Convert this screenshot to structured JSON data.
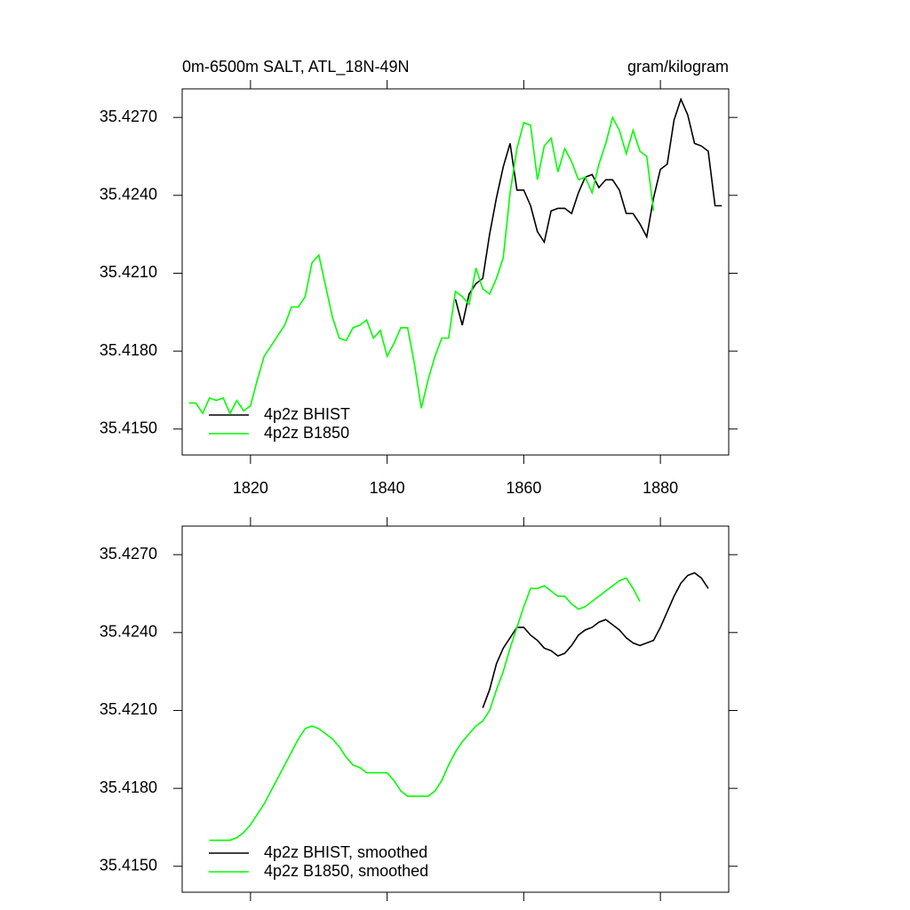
{
  "chart_data": [
    {
      "type": "line",
      "title": "0m-6500m SALT, ATL_18N-49N",
      "units_label": "gram/kilogram",
      "xlim": [
        1810,
        1890
      ],
      "xticks": [
        1820,
        1840,
        1860,
        1880
      ],
      "ylim": [
        35.414,
        35.4281
      ],
      "yticks": [
        {
          "value": 35.415,
          "label": "35.4150"
        },
        {
          "value": 35.418,
          "label": "35.4180"
        },
        {
          "value": 35.421,
          "label": "35.4210"
        },
        {
          "value": 35.424,
          "label": "35.4240"
        },
        {
          "value": 35.427,
          "label": "35.4270"
        }
      ],
      "series": [
        {
          "name": "4p2z BHIST",
          "color": "#000000",
          "x": [
            1850,
            1851,
            1852,
            1853,
            1854,
            1855,
            1856,
            1857,
            1858,
            1859,
            1860,
            1861,
            1862,
            1863,
            1864,
            1865,
            1866,
            1867,
            1868,
            1869,
            1870,
            1871,
            1872,
            1873,
            1874,
            1875,
            1876,
            1877,
            1878,
            1879,
            1880,
            1881,
            1882,
            1883,
            1884,
            1885,
            1886,
            1887,
            1888,
            1889
          ],
          "values": [
            35.42,
            35.419,
            35.4202,
            35.4206,
            35.4208,
            35.4225,
            35.4239,
            35.4251,
            35.426,
            35.4242,
            35.4242,
            35.4236,
            35.4226,
            35.4222,
            35.4234,
            35.4235,
            35.4235,
            35.4233,
            35.4241,
            35.4247,
            35.4248,
            35.4243,
            35.4246,
            35.4246,
            35.4242,
            35.4233,
            35.4233,
            35.4229,
            35.4224,
            35.4239,
            35.425,
            35.4252,
            35.4269,
            35.4277,
            35.4271,
            35.426,
            35.4259,
            35.4257,
            35.4236,
            35.4236
          ]
        },
        {
          "name": "4p2z B1850",
          "color": "#00ff00",
          "x": [
            1811,
            1812,
            1813,
            1814,
            1815,
            1816,
            1817,
            1818,
            1819,
            1820,
            1821,
            1822,
            1823,
            1824,
            1825,
            1826,
            1827,
            1828,
            1829,
            1830,
            1831,
            1832,
            1833,
            1834,
            1835,
            1836,
            1837,
            1838,
            1839,
            1840,
            1841,
            1842,
            1843,
            1844,
            1845,
            1846,
            1847,
            1848,
            1849,
            1850,
            1851,
            1852,
            1853,
            1854,
            1855,
            1856,
            1857,
            1858,
            1859,
            1860,
            1861,
            1862,
            1863,
            1864,
            1865,
            1866,
            1867,
            1868,
            1869,
            1870,
            1871,
            1872,
            1873,
            1874,
            1875,
            1876,
            1877,
            1878,
            1879
          ],
          "values": [
            35.416,
            35.416,
            35.4156,
            35.4162,
            35.4161,
            35.4162,
            35.4156,
            35.4161,
            35.4157,
            35.4159,
            35.4169,
            35.4178,
            35.4182,
            35.4186,
            35.419,
            35.4197,
            35.4197,
            35.4201,
            35.4214,
            35.4217,
            35.4205,
            35.4193,
            35.4185,
            35.4184,
            35.4189,
            35.419,
            35.4192,
            35.4185,
            35.4188,
            35.4178,
            35.4183,
            35.4189,
            35.4189,
            35.4175,
            35.4158,
            35.4169,
            35.4178,
            35.4185,
            35.4185,
            35.4203,
            35.4201,
            35.4198,
            35.4212,
            35.4204,
            35.4202,
            35.4208,
            35.4216,
            35.4241,
            35.4258,
            35.4268,
            35.4267,
            35.4246,
            35.4259,
            35.4262,
            35.4249,
            35.4258,
            35.4253,
            35.4246,
            35.4247,
            35.4241,
            35.4252,
            35.426,
            35.427,
            35.4265,
            35.4256,
            35.4265,
            35.4257,
            35.4255,
            35.4234
          ]
        }
      ]
    },
    {
      "type": "line",
      "xlim": [
        1810,
        1890
      ],
      "xticks": [
        1820,
        1840,
        1860,
        1880
      ],
      "ylim": [
        35.414,
        35.4281
      ],
      "yticks": [
        {
          "value": 35.415,
          "label": "35.4150"
        },
        {
          "value": 35.418,
          "label": "35.4180"
        },
        {
          "value": 35.421,
          "label": "35.4210"
        },
        {
          "value": 35.424,
          "label": "35.4240"
        },
        {
          "value": 35.427,
          "label": "35.4270"
        }
      ],
      "series": [
        {
          "name": "4p2z BHIST, smoothed",
          "color": "#000000",
          "x": [
            1854,
            1855,
            1856,
            1857,
            1858,
            1859,
            1860,
            1861,
            1862,
            1863,
            1864,
            1865,
            1866,
            1867,
            1868,
            1869,
            1870,
            1871,
            1872,
            1873,
            1874,
            1875,
            1876,
            1877,
            1878,
            1879,
            1880,
            1881,
            1882,
            1883,
            1884,
            1885,
            1886,
            1887
          ],
          "values": [
            35.4211,
            35.4218,
            35.4228,
            35.4234,
            35.4238,
            35.4242,
            35.4242,
            35.4239,
            35.4237,
            35.4234,
            35.4233,
            35.4231,
            35.4232,
            35.4235,
            35.4239,
            35.4241,
            35.4242,
            35.4244,
            35.4245,
            35.4243,
            35.4241,
            35.4238,
            35.4236,
            35.4235,
            35.4236,
            35.4237,
            35.4242,
            35.4248,
            35.4254,
            35.4259,
            35.4262,
            35.4263,
            35.4261,
            35.4257
          ]
        },
        {
          "name": "4p2z B1850, smoothed",
          "color": "#00ff00",
          "x": [
            1814,
            1815,
            1816,
            1817,
            1818,
            1819,
            1820,
            1821,
            1822,
            1823,
            1824,
            1825,
            1826,
            1827,
            1828,
            1829,
            1830,
            1831,
            1832,
            1833,
            1834,
            1835,
            1836,
            1837,
            1838,
            1839,
            1840,
            1841,
            1842,
            1843,
            1844,
            1845,
            1846,
            1847,
            1848,
            1849,
            1850,
            1851,
            1852,
            1853,
            1854,
            1855,
            1856,
            1857,
            1858,
            1859,
            1860,
            1861,
            1862,
            1863,
            1864,
            1865,
            1866,
            1867,
            1868,
            1869,
            1870,
            1871,
            1872,
            1873,
            1874,
            1875,
            1876,
            1877
          ],
          "values": [
            35.416,
            35.416,
            35.416,
            35.416,
            35.4161,
            35.4163,
            35.4166,
            35.417,
            35.4174,
            35.4179,
            35.4184,
            35.4189,
            35.4194,
            35.4199,
            35.4203,
            35.4204,
            35.4203,
            35.4201,
            35.4199,
            35.4196,
            35.4192,
            35.4189,
            35.4188,
            35.4186,
            35.4186,
            35.4186,
            35.4186,
            35.4183,
            35.4179,
            35.4177,
            35.4177,
            35.4177,
            35.4177,
            35.4179,
            35.4183,
            35.4189,
            35.4194,
            35.4198,
            35.4201,
            35.4204,
            35.4206,
            35.421,
            35.4218,
            35.4225,
            35.4234,
            35.4242,
            35.425,
            35.4257,
            35.4257,
            35.4258,
            35.4256,
            35.4254,
            35.4254,
            35.4251,
            35.4249,
            35.425,
            35.4252,
            35.4254,
            35.4256,
            35.4258,
            35.426,
            35.4261,
            35.4257,
            35.4252
          ]
        }
      ]
    }
  ]
}
